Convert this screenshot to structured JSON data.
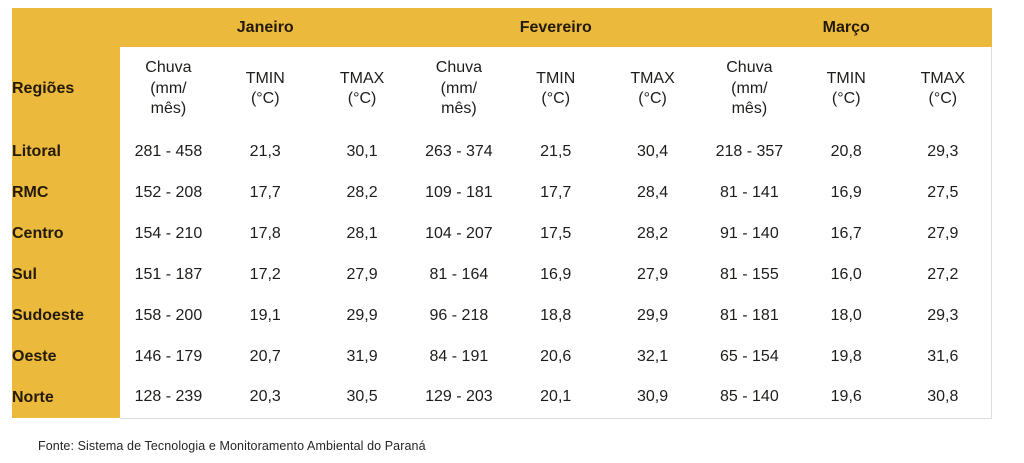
{
  "colors": {
    "yellow": "#EBB93C",
    "header_text": "#231A0B",
    "body_text": "#1D1D1B",
    "panel_border": "#DCDCDC",
    "background": "#FFFFFF"
  },
  "chart_data": {
    "type": "table",
    "title": "",
    "corner_header": "Regiões",
    "months": [
      "Janeiro",
      "Fevereiro",
      "Março"
    ],
    "sub_headers": [
      {
        "key": "chuva",
        "label": "Chuva (mm/mês)",
        "lines": [
          "Chuva",
          "(mm/",
          "mês)"
        ]
      },
      {
        "key": "tmin",
        "label": "TMIN (°C)",
        "lines": [
          "TMIN",
          "(°C)"
        ]
      },
      {
        "key": "tmax",
        "label": "TMAX (°C)",
        "lines": [
          "TMAX",
          "(°C)"
        ]
      }
    ],
    "rows": [
      {
        "region": "Litoral",
        "values": [
          "281 - 458",
          "21,3",
          "30,1",
          "263 - 374",
          "21,5",
          "30,4",
          "218 - 357",
          "20,8",
          "29,3"
        ]
      },
      {
        "region": "RMC",
        "values": [
          "152 - 208",
          "17,7",
          "28,2",
          "109 - 181",
          "17,7",
          "28,4",
          "81 - 141",
          "16,9",
          "27,5"
        ]
      },
      {
        "region": "Centro",
        "values": [
          "154 - 210",
          "17,8",
          "28,1",
          "104 - 207",
          "17,5",
          "28,2",
          "91 - 140",
          "16,7",
          "27,9"
        ]
      },
      {
        "region": "Sul",
        "values": [
          "151 - 187",
          "17,2",
          "27,9",
          "81 - 164",
          "16,9",
          "27,9",
          "81 - 155",
          "16,0",
          "27,2"
        ]
      },
      {
        "region": "Sudoeste",
        "values": [
          "158 - 200",
          "19,1",
          "29,9",
          "96 - 218",
          "18,8",
          "29,9",
          "81 - 181",
          "18,0",
          "29,3"
        ]
      },
      {
        "region": "Oeste",
        "values": [
          "146 - 179",
          "20,7",
          "31,9",
          "84 - 191",
          "20,6",
          "32,1",
          "65 - 154",
          "19,8",
          "31,6"
        ]
      },
      {
        "region": "Norte",
        "values": [
          "128 - 239",
          "20,3",
          "30,5",
          "129 - 203",
          "20,1",
          "30,9",
          "85 - 140",
          "19,6",
          "30,8"
        ]
      }
    ],
    "source": "Fonte: Sistema de Tecnologia e Monitoramento Ambiental do Paraná"
  }
}
